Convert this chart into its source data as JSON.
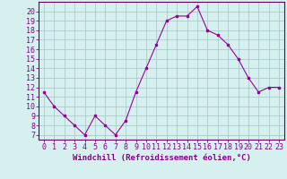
{
  "x": [
    0,
    1,
    2,
    3,
    4,
    5,
    6,
    7,
    8,
    9,
    10,
    11,
    12,
    13,
    14,
    15,
    16,
    17,
    18,
    19,
    20,
    21,
    22,
    23
  ],
  "y": [
    11.5,
    10.0,
    9.0,
    8.0,
    7.0,
    9.0,
    8.0,
    7.0,
    8.5,
    11.5,
    14.0,
    16.5,
    19.0,
    19.5,
    19.5,
    20.5,
    18.0,
    17.5,
    16.5,
    15.0,
    13.0,
    11.5,
    12.0,
    12.0
  ],
  "line_color": "#990099",
  "marker": "s",
  "marker_size": 2,
  "bg_color": "#d6f0f0",
  "grid_color": "#aacccc",
  "xlabel": "Windchill (Refroidissement éolien,°C)",
  "ylabel_ticks": [
    7,
    8,
    9,
    10,
    11,
    12,
    13,
    14,
    15,
    16,
    17,
    18,
    19,
    20
  ],
  "xlim": [
    -0.5,
    23.5
  ],
  "ylim": [
    6.5,
    21.0
  ],
  "xlabel_fontsize": 6.5,
  "tick_fontsize": 6,
  "axis_color": "#880088",
  "spine_color": "#660066"
}
